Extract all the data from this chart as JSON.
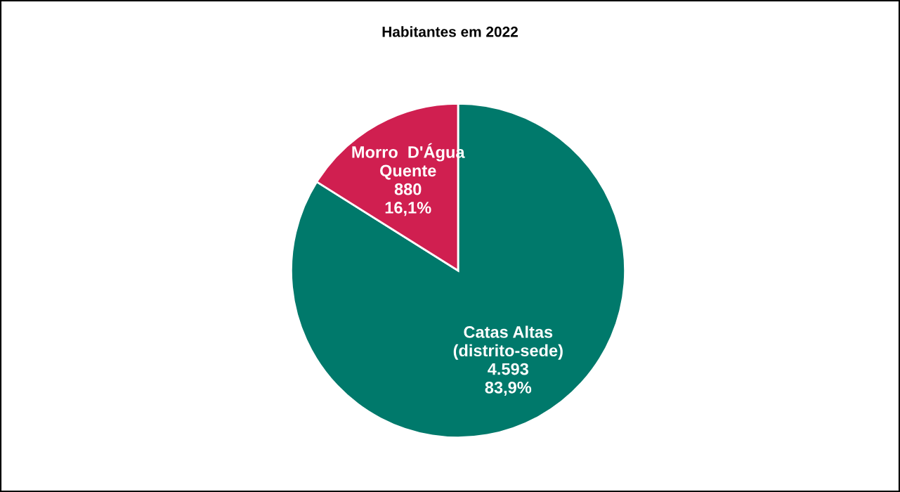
{
  "chart_data": {
    "type": "pie",
    "title": "Habitantes em 2022",
    "categories": [
      "Catas Altas\n(distrito-sede)",
      "Morro  D'Água\nQuente"
    ],
    "values": [
      4593,
      880
    ],
    "colors": [
      "#00796b",
      "#d01f50"
    ],
    "value_labels": [
      "4.593\n83,9%",
      "880\n16,1%"
    ]
  }
}
